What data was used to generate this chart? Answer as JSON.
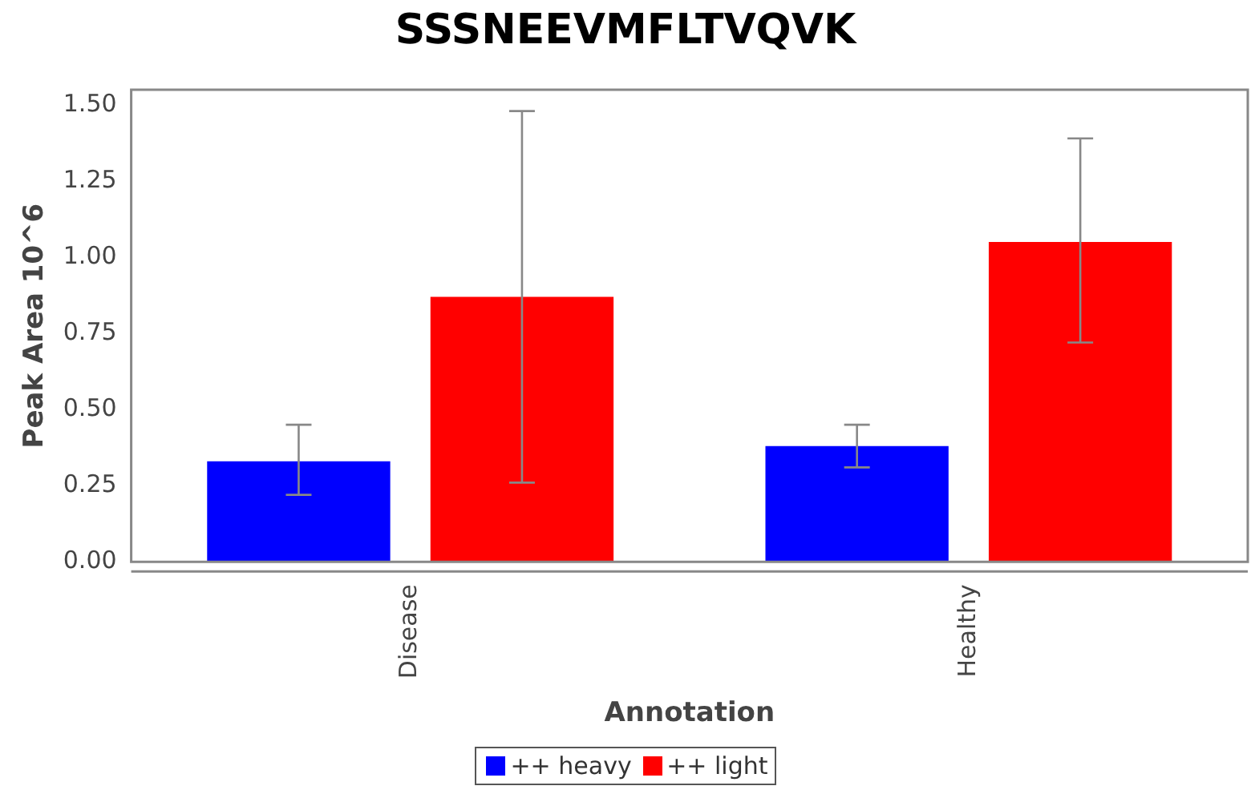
{
  "chart_data": {
    "type": "bar",
    "title": "SSSNEEVMFLTVQVK",
    "xlabel": "Annotation",
    "ylabel": "Peak Area 10^6",
    "categories": [
      "Disease",
      "Healthy"
    ],
    "series": [
      {
        "name": "++ heavy",
        "color": "#0000ff",
        "values": [
          0.33,
          0.38
        ],
        "errors": [
          [
            0.22,
            0.45
          ],
          [
            0.31,
            0.45
          ]
        ]
      },
      {
        "name": "++ light",
        "color": "#ff0000",
        "values": [
          0.87,
          1.05
        ],
        "errors": [
          [
            0.26,
            1.48
          ],
          [
            0.72,
            1.39
          ]
        ]
      }
    ],
    "ylim": [
      0,
      1.55
    ],
    "yticks": [
      {
        "value": 0,
        "label": "0.00"
      },
      {
        "value": 0.25,
        "label": "0.25"
      },
      {
        "value": 0.5,
        "label": "0.50"
      },
      {
        "value": 0.75,
        "label": "0.75"
      },
      {
        "value": 1,
        "label": "1.00"
      },
      {
        "value": 1.25,
        "label": "1.25"
      },
      {
        "value": 1.5,
        "label": "1.50"
      }
    ],
    "grid": false,
    "legend": "bottom"
  }
}
